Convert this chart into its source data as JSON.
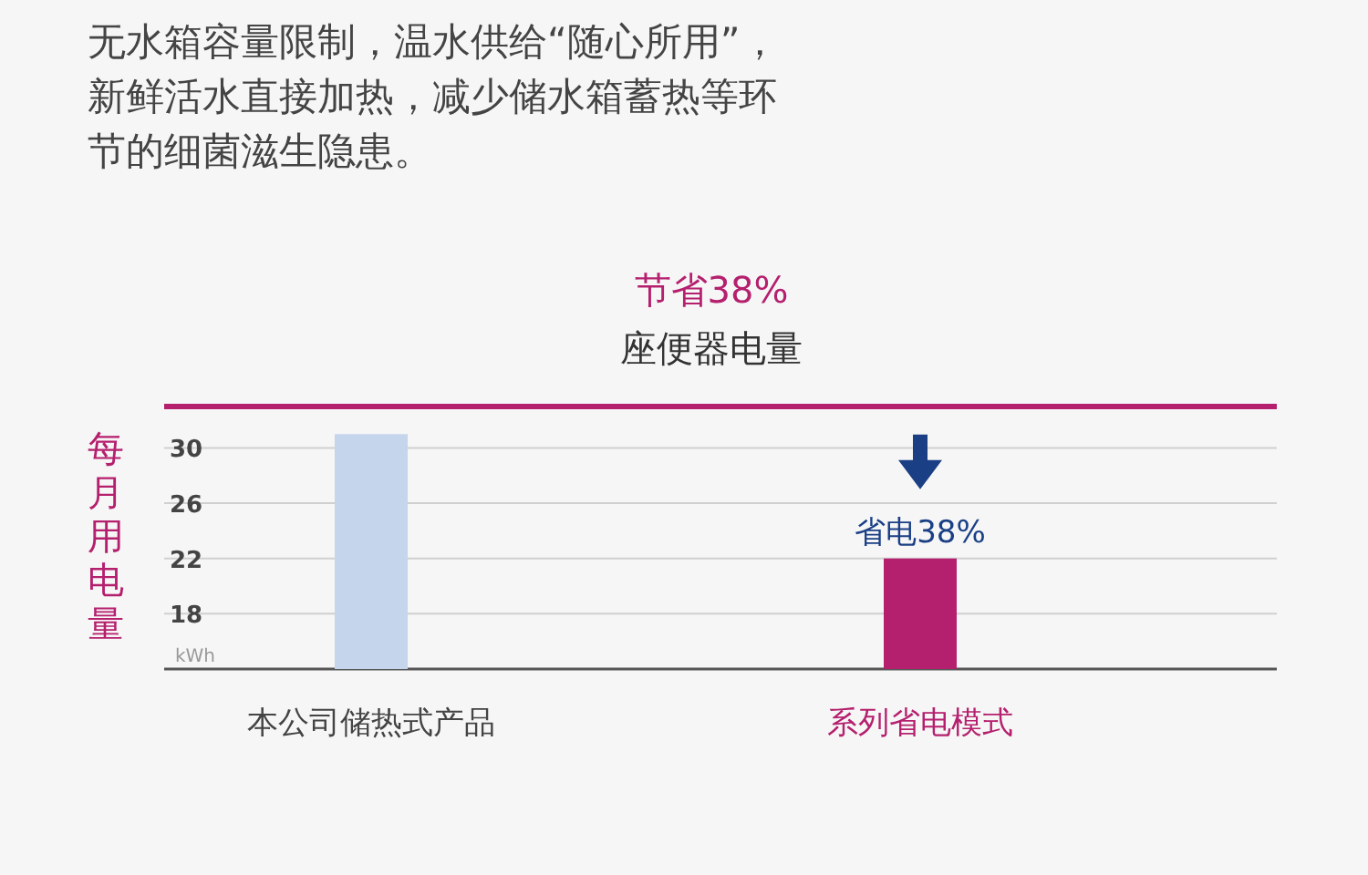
{
  "chart_data": {
    "type": "bar",
    "title": "无水箱容量限制，温水供给“随心所用”，新鲜活水直接加热，减少储水箱蓄热等环节的细菌滋生隐患。",
    "subtitle": "节省38%",
    "ylabel": "每月用电量",
    "categories": [
      "本公司储热式产品",
      "系列省电模式"
    ],
    "values": [
      31,
      22
    ],
    "colors": [
      "#c5d5ec",
      "#b5206e"
    ],
    "ylim": [
      14,
      33
    ],
    "yticks": [
      18,
      22,
      26,
      30
    ],
    "grid": "y",
    "annotations": [
      "座便器电量",
      "kWh",
      {
        "text": "省电38%",
        "x": "系列省电模式",
        "y": 22
      }
    ]
  }
}
